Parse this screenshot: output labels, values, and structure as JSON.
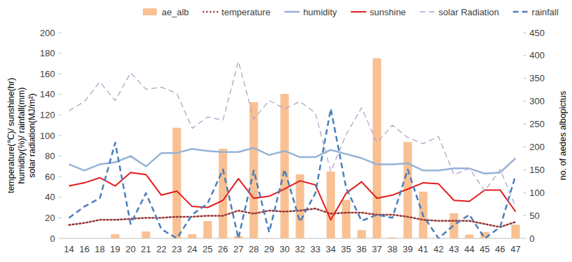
{
  "chart_data": {
    "type": "combo",
    "ylabel": [
      "temperature(℃)/  sunshine(hr)",
      "humidity(%)/ rainfall(mm)",
      "solar radiation(MJ/m²)"
    ],
    "y2label": "no. of aedes albopictus",
    "categories": [
      "14",
      "16",
      "18",
      "19",
      "20",
      "21",
      "22",
      "23",
      "24",
      "25",
      "26",
      "27",
      "28",
      "29",
      "30",
      "32",
      "33",
      "34",
      "35",
      "36",
      "37",
      "38",
      "39",
      "41",
      "42",
      "43",
      "44",
      "45",
      "46",
      "47"
    ],
    "ylim": [
      0,
      200
    ],
    "yticks": [
      0,
      20,
      40,
      60,
      80,
      100,
      120,
      140,
      160,
      180,
      200
    ],
    "y2lim": [
      0,
      450
    ],
    "y2ticks": [
      0,
      50,
      100,
      150,
      200,
      250,
      300,
      350,
      400,
      450
    ],
    "legend": "top",
    "grid": false,
    "series": [
      {
        "name": "ae_alb",
        "type": "bar",
        "axis": "y2",
        "color": "#f9c193",
        "values": [
          0,
          0,
          0,
          9,
          0,
          15,
          0,
          242,
          9,
          38,
          196,
          5,
          298,
          0,
          316,
          140,
          0,
          146,
          84,
          18,
          394,
          2,
          211,
          102,
          0,
          55,
          8,
          14,
          0,
          30
        ]
      },
      {
        "name": "temperature",
        "type": "line",
        "line_style": "dotted",
        "color": "#953735",
        "values": [
          13,
          15,
          18,
          18,
          19,
          20,
          20,
          21,
          21,
          22,
          22,
          27,
          24,
          27,
          26,
          27,
          29,
          24,
          25,
          25,
          23,
          23,
          21,
          18,
          17,
          17,
          17,
          14,
          11,
          16
        ]
      },
      {
        "name": "humidity",
        "type": "line",
        "line_style": "solid",
        "color": "#95b3d7",
        "values": [
          72,
          66,
          72,
          74,
          80,
          70,
          83,
          83,
          87,
          85,
          84,
          84,
          88,
          81,
          85,
          79,
          79,
          86,
          82,
          78,
          72,
          72,
          73,
          66,
          66,
          68,
          68,
          63,
          64,
          78
        ]
      },
      {
        "name": "sunshine",
        "type": "line",
        "line_style": "solid",
        "color": "#e31a1c",
        "values": [
          51,
          54,
          59,
          51,
          64,
          62,
          42,
          46,
          31,
          30,
          37,
          58,
          39,
          41,
          48,
          56,
          52,
          18,
          44,
          55,
          39,
          42,
          48,
          54,
          53,
          37,
          36,
          47,
          47,
          26
        ]
      },
      {
        "name": "solar Radiation",
        "type": "line",
        "line_style": "dashed",
        "color": "#b3a2c7",
        "values": [
          124,
          133,
          152,
          134,
          161,
          145,
          147,
          141,
          107,
          118,
          115,
          172,
          116,
          134,
          126,
          133,
          122,
          65,
          101,
          127,
          93,
          110,
          98,
          92,
          99,
          62,
          68,
          46,
          67,
          31
        ]
      },
      {
        "name": "rainfall",
        "type": "line",
        "line_style": "dashed",
        "color": "#4a7ebb",
        "values": [
          20,
          31,
          39,
          93,
          14,
          44,
          9,
          0,
          23,
          34,
          67,
          0,
          66,
          6,
          67,
          16,
          44,
          126,
          49,
          17,
          23,
          20,
          67,
          22,
          0,
          13,
          23,
          0,
          11,
          61
        ]
      }
    ]
  }
}
